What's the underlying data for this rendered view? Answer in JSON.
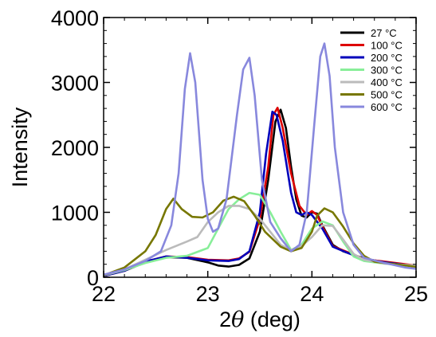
{
  "chart_data": {
    "type": "line",
    "title": "",
    "xlabel": "2θ (deg)",
    "ylabel": "Intensity",
    "xlim": [
      22,
      25
    ],
    "ylim": [
      0,
      4000
    ],
    "xticks": [
      22,
      23,
      24,
      25
    ],
    "yticks": [
      0,
      1000,
      2000,
      3000,
      4000
    ],
    "grid": false,
    "legend_position": "top-right",
    "series": [
      {
        "name": "27 °C",
        "color": "#000000",
        "points": [
          [
            22.0,
            20
          ],
          [
            22.2,
            100
          ],
          [
            22.4,
            230
          ],
          [
            22.6,
            310
          ],
          [
            22.8,
            300
          ],
          [
            23.0,
            230
          ],
          [
            23.1,
            180
          ],
          [
            23.2,
            165
          ],
          [
            23.3,
            190
          ],
          [
            23.4,
            290
          ],
          [
            23.5,
            700
          ],
          [
            23.58,
            1500
          ],
          [
            23.65,
            2400
          ],
          [
            23.7,
            2580
          ],
          [
            23.75,
            2300
          ],
          [
            23.8,
            1700
          ],
          [
            23.85,
            1200
          ],
          [
            23.9,
            950
          ],
          [
            23.95,
            920
          ],
          [
            24.0,
            1000
          ],
          [
            24.05,
            980
          ],
          [
            24.1,
            800
          ],
          [
            24.2,
            500
          ],
          [
            24.3,
            400
          ],
          [
            24.5,
            290
          ],
          [
            24.7,
            230
          ],
          [
            24.9,
            190
          ],
          [
            25.0,
            170
          ]
        ]
      },
      {
        "name": "100 °C",
        "color": "#dd0000",
        "points": [
          [
            22.0,
            20
          ],
          [
            22.2,
            100
          ],
          [
            22.4,
            240
          ],
          [
            22.6,
            320
          ],
          [
            22.8,
            310
          ],
          [
            23.0,
            270
          ],
          [
            23.2,
            260
          ],
          [
            23.3,
            290
          ],
          [
            23.4,
            390
          ],
          [
            23.5,
            900
          ],
          [
            23.58,
            1700
          ],
          [
            23.63,
            2500
          ],
          [
            23.67,
            2610
          ],
          [
            23.72,
            2300
          ],
          [
            23.8,
            1600
          ],
          [
            23.88,
            1100
          ],
          [
            23.95,
            960
          ],
          [
            24.0,
            1020
          ],
          [
            24.05,
            960
          ],
          [
            24.1,
            780
          ],
          [
            24.2,
            480
          ],
          [
            24.35,
            380
          ],
          [
            24.5,
            280
          ],
          [
            24.7,
            240
          ],
          [
            24.9,
            200
          ],
          [
            25.0,
            180
          ]
        ]
      },
      {
        "name": "200 °C",
        "color": "#0000bb",
        "points": [
          [
            22.0,
            20
          ],
          [
            22.2,
            100
          ],
          [
            22.4,
            240
          ],
          [
            22.6,
            320
          ],
          [
            22.8,
            300
          ],
          [
            23.0,
            260
          ],
          [
            23.2,
            250
          ],
          [
            23.3,
            280
          ],
          [
            23.4,
            400
          ],
          [
            23.5,
            1000
          ],
          [
            23.56,
            1900
          ],
          [
            23.62,
            2550
          ],
          [
            23.66,
            2500
          ],
          [
            23.72,
            2100
          ],
          [
            23.8,
            1300
          ],
          [
            23.85,
            1000
          ],
          [
            23.9,
            960
          ],
          [
            23.95,
            1000
          ],
          [
            24.0,
            960
          ],
          [
            24.1,
            750
          ],
          [
            24.2,
            470
          ],
          [
            24.35,
            370
          ],
          [
            24.5,
            280
          ],
          [
            24.7,
            230
          ],
          [
            24.9,
            190
          ],
          [
            25.0,
            170
          ]
        ]
      },
      {
        "name": "300 °C",
        "color": "#88ee99",
        "points": [
          [
            22.0,
            30
          ],
          [
            22.2,
            110
          ],
          [
            22.4,
            220
          ],
          [
            22.6,
            300
          ],
          [
            22.8,
            330
          ],
          [
            23.0,
            450
          ],
          [
            23.1,
            750
          ],
          [
            23.2,
            1050
          ],
          [
            23.3,
            1200
          ],
          [
            23.4,
            1300
          ],
          [
            23.5,
            1270
          ],
          [
            23.6,
            1000
          ],
          [
            23.7,
            700
          ],
          [
            23.8,
            420
          ],
          [
            23.9,
            500
          ],
          [
            24.0,
            750
          ],
          [
            24.1,
            860
          ],
          [
            24.2,
            800
          ],
          [
            24.3,
            550
          ],
          [
            24.4,
            320
          ],
          [
            24.5,
            250
          ],
          [
            24.7,
            210
          ],
          [
            25.0,
            170
          ]
        ]
      },
      {
        "name": "400 °C",
        "color": "#bbbbbb",
        "points": [
          [
            22.0,
            30
          ],
          [
            22.2,
            120
          ],
          [
            22.4,
            270
          ],
          [
            22.6,
            420
          ],
          [
            22.8,
            550
          ],
          [
            22.9,
            620
          ],
          [
            23.0,
            850
          ],
          [
            23.1,
            1000
          ],
          [
            23.2,
            1100
          ],
          [
            23.3,
            1100
          ],
          [
            23.4,
            1050
          ],
          [
            23.5,
            900
          ],
          [
            23.6,
            700
          ],
          [
            23.7,
            500
          ],
          [
            23.8,
            420
          ],
          [
            23.9,
            480
          ],
          [
            24.0,
            620
          ],
          [
            24.1,
            800
          ],
          [
            24.2,
            790
          ],
          [
            24.3,
            580
          ],
          [
            24.4,
            360
          ],
          [
            24.5,
            270
          ],
          [
            24.7,
            210
          ],
          [
            25.0,
            180
          ]
        ]
      },
      {
        "name": "500 °C",
        "color": "#777700",
        "points": [
          [
            22.0,
            30
          ],
          [
            22.2,
            150
          ],
          [
            22.4,
            400
          ],
          [
            22.5,
            650
          ],
          [
            22.6,
            1050
          ],
          [
            22.67,
            1210
          ],
          [
            22.75,
            1050
          ],
          [
            22.85,
            930
          ],
          [
            22.95,
            920
          ],
          [
            23.05,
            1000
          ],
          [
            23.15,
            1180
          ],
          [
            23.25,
            1240
          ],
          [
            23.35,
            1170
          ],
          [
            23.45,
            950
          ],
          [
            23.55,
            700
          ],
          [
            23.7,
            470
          ],
          [
            23.8,
            400
          ],
          [
            23.9,
            450
          ],
          [
            24.0,
            700
          ],
          [
            24.05,
            950
          ],
          [
            24.12,
            1060
          ],
          [
            24.2,
            1000
          ],
          [
            24.3,
            780
          ],
          [
            24.4,
            520
          ],
          [
            24.5,
            330
          ],
          [
            24.6,
            240
          ],
          [
            24.8,
            200
          ],
          [
            25.0,
            160
          ]
        ]
      },
      {
        "name": "600 °C",
        "color": "#8888dd",
        "points": [
          [
            22.0,
            40
          ],
          [
            22.2,
            120
          ],
          [
            22.4,
            250
          ],
          [
            22.55,
            400
          ],
          [
            22.65,
            800
          ],
          [
            22.72,
            1600
          ],
          [
            22.78,
            2900
          ],
          [
            22.83,
            3450
          ],
          [
            22.88,
            3000
          ],
          [
            22.95,
            1500
          ],
          [
            23.0,
            900
          ],
          [
            23.05,
            700
          ],
          [
            23.1,
            750
          ],
          [
            23.18,
            1200
          ],
          [
            23.28,
            2500
          ],
          [
            23.34,
            3200
          ],
          [
            23.4,
            3380
          ],
          [
            23.45,
            2800
          ],
          [
            23.52,
            1500
          ],
          [
            23.6,
            850
          ],
          [
            23.7,
            600
          ],
          [
            23.8,
            400
          ],
          [
            23.88,
            500
          ],
          [
            23.95,
            1000
          ],
          [
            24.02,
            2300
          ],
          [
            24.08,
            3400
          ],
          [
            24.12,
            3600
          ],
          [
            24.17,
            3100
          ],
          [
            24.22,
            2000
          ],
          [
            24.3,
            1000
          ],
          [
            24.4,
            500
          ],
          [
            24.5,
            300
          ],
          [
            24.7,
            220
          ],
          [
            24.9,
            150
          ],
          [
            25.0,
            130
          ]
        ]
      }
    ]
  }
}
